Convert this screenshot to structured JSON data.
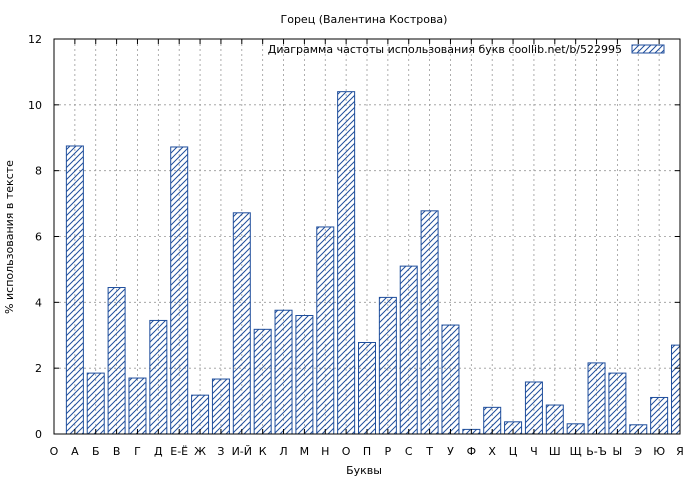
{
  "chart_data": {
    "type": "bar",
    "title": "Горец (Валентина Кострова)",
    "xlabel": "Буквы",
    "ylabel": "% использования в тексте",
    "ylim": [
      0,
      12
    ],
    "y_ticks": [
      0,
      2,
      4,
      6,
      8,
      10,
      12
    ],
    "grid": true,
    "legend_position": "top-right",
    "categories": [
      "О",
      "А",
      "Б",
      "В",
      "Г",
      "Д",
      "Е-Ё",
      "Ж",
      "З",
      "И-Й",
      "К",
      "Л",
      "М",
      "Н",
      "О",
      "П",
      "Р",
      "С",
      "Т",
      "У",
      "Ф",
      "Х",
      "Ц",
      "Ч",
      "Ш",
      "Щ",
      "Ь-Ъ",
      "Ы",
      "Э",
      "Ю",
      "Я"
    ],
    "series": [
      {
        "name": "Диаграмма частоты использования букв  coollib.net/b/522995",
        "color": "#1f4e9c",
        "values": [
          null,
          8.75,
          1.85,
          4.45,
          1.7,
          3.45,
          8.72,
          1.18,
          1.67,
          6.72,
          3.18,
          3.76,
          3.6,
          6.29,
          10.4,
          2.78,
          4.15,
          5.1,
          6.78,
          3.31,
          0.14,
          0.81,
          0.37,
          1.58,
          0.88,
          0.31,
          2.16,
          1.85,
          0.28,
          1.11,
          2.7
        ]
      }
    ]
  }
}
